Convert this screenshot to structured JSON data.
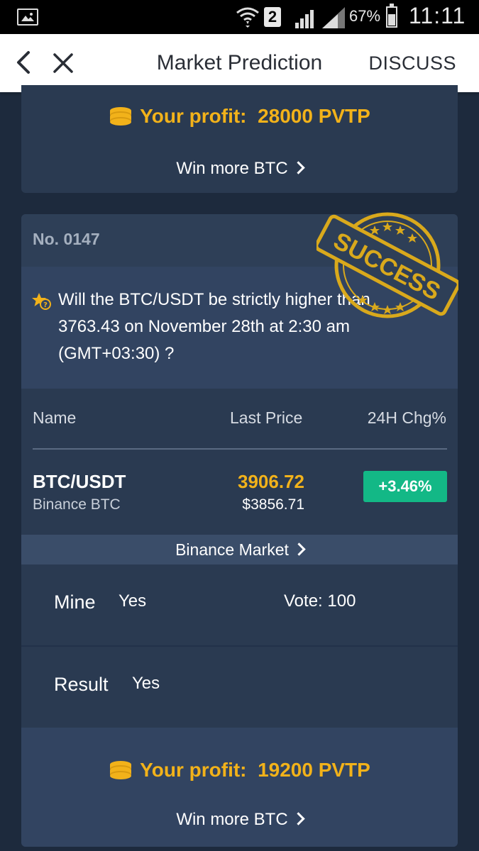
{
  "status_bar": {
    "sim_slot": "2",
    "battery": "67%",
    "time": "11:11"
  },
  "appbar": {
    "title": "Market Prediction",
    "discuss": "DISCUSS"
  },
  "top_card": {
    "profit_label": "Your profit:",
    "profit_value": "28000 PVTP",
    "win_more": "Win more BTC"
  },
  "prediction": {
    "number": "No. 0147",
    "stamp": "SUCCESS",
    "question": "Will the BTC/USDT be strictly higher than 3763.43 on November 28th at 2:30 am (GMT+03:30) ?",
    "table": {
      "headers": [
        "Name",
        "Last Price",
        "24H Chg%"
      ],
      "pair": "BTC/USDT",
      "exchange": "Binance BTC",
      "last_price": "3906.72",
      "usd_price": "$3856.71",
      "change": "+3.46%"
    },
    "market_link": "Binance Market",
    "mine_label": "Mine",
    "mine_value": "Yes",
    "vote": "Vote: 100",
    "result_label": "Result",
    "result_value": "Yes",
    "profit_label": "Your profit:",
    "profit_value": "19200 PVTP",
    "win_more": "Win more BTC"
  },
  "colors": {
    "accent_gold": "#f2b21a",
    "positive_green": "#13b886",
    "card_bg": "#2a3a51",
    "page_bg": "#1d2a3d"
  }
}
